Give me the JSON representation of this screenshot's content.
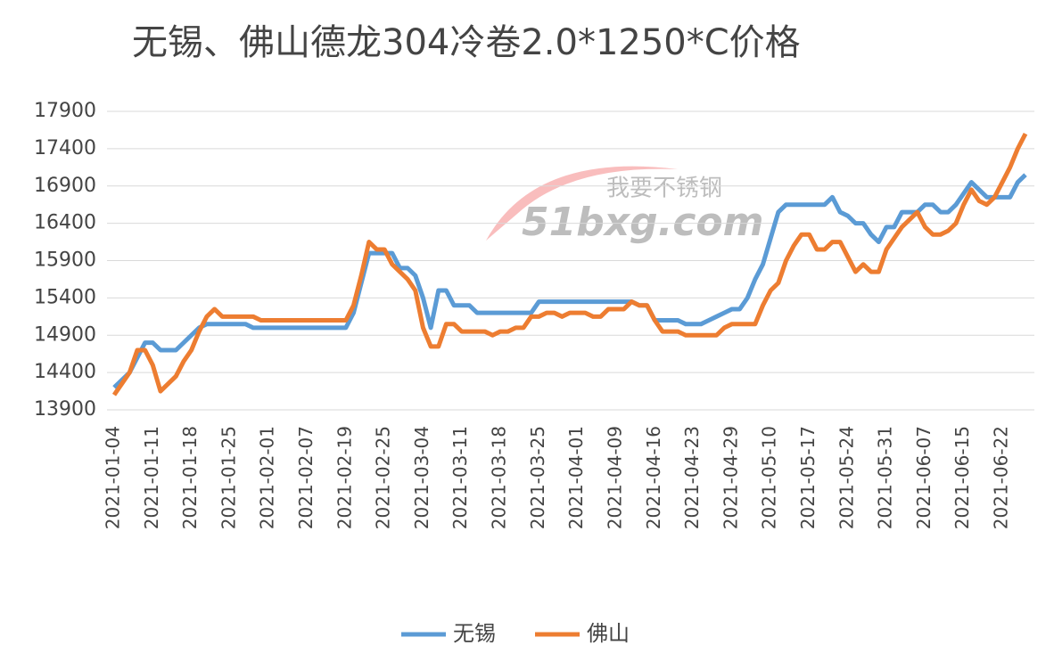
{
  "chart_data": {
    "type": "line",
    "title": "无锡、佛山德龙304冷卷2.0*1250*C价格",
    "watermark": [
      "我要不锈钢",
      "51bxg.com"
    ],
    "categories": [
      "2021-01-04",
      null,
      null,
      null,
      null,
      "2021-01-11",
      null,
      null,
      null,
      null,
      "2021-01-18",
      null,
      null,
      null,
      null,
      "2021-01-25",
      null,
      null,
      null,
      null,
      "2021-02-01",
      null,
      null,
      null,
      null,
      "2021-02-07",
      null,
      null,
      null,
      null,
      "2021-02-19",
      null,
      null,
      null,
      null,
      "2021-02-25",
      null,
      null,
      null,
      null,
      "2021-03-04",
      null,
      null,
      null,
      null,
      "2021-03-11",
      null,
      null,
      null,
      null,
      "2021-03-18",
      null,
      null,
      null,
      null,
      "2021-03-25",
      null,
      null,
      null,
      null,
      "2021-04-01",
      null,
      null,
      null,
      null,
      "2021-04-09",
      null,
      null,
      null,
      null,
      "2021-04-16",
      null,
      null,
      null,
      null,
      "2021-04-23",
      null,
      null,
      null,
      null,
      "2021-04-29",
      null,
      null,
      null,
      null,
      "2021-05-10",
      null,
      null,
      null,
      null,
      "2021-05-17",
      null,
      null,
      null,
      null,
      "2021-05-24",
      null,
      null,
      null,
      null,
      "2021-05-31",
      null,
      null,
      null,
      null,
      "2021-06-07",
      null,
      null,
      null,
      null,
      "2021-06-15",
      null,
      null,
      null,
      null,
      "2021-06-22",
      null,
      null,
      null
    ],
    "series": [
      {
        "name": "无锡",
        "color": "#5b9bd5",
        "values": [
          14200,
          14300,
          14400,
          14600,
          14800,
          14800,
          14700,
          14700,
          14700,
          14800,
          14900,
          15000,
          15050,
          15050,
          15050,
          15050,
          15050,
          15050,
          15000,
          15000,
          15000,
          15000,
          15000,
          15000,
          15000,
          15000,
          15000,
          15000,
          15000,
          15000,
          15000,
          15200,
          15600,
          16000,
          16000,
          16000,
          16000,
          15800,
          15800,
          15700,
          15400,
          15000,
          15500,
          15500,
          15300,
          15300,
          15300,
          15200,
          15200,
          15200,
          15200,
          15200,
          15200,
          15200,
          15200,
          15350,
          15350,
          15350,
          15350,
          15350,
          15350,
          15350,
          15350,
          15350,
          15350,
          15350,
          15350,
          15350,
          15300,
          15300,
          15100,
          15100,
          15100,
          15100,
          15050,
          15050,
          15050,
          15100,
          15150,
          15200,
          15250,
          15250,
          15400,
          15650,
          15850,
          16200,
          16550,
          16650,
          16650,
          16650,
          16650,
          16650,
          16650,
          16750,
          16550,
          16500,
          16400,
          16400,
          16250,
          16150,
          16350,
          16350,
          16550,
          16550,
          16550,
          16650,
          16650,
          16550,
          16550,
          16650,
          16800,
          16950,
          16850,
          16750,
          16750,
          16750,
          16750,
          16950,
          17050
        ]
      },
      {
        "name": "佛山",
        "color": "#ed7d31",
        "values": [
          14100,
          14250,
          14400,
          14700,
          14700,
          14500,
          14150,
          14250,
          14350,
          14550,
          14700,
          14950,
          15150,
          15250,
          15150,
          15150,
          15150,
          15150,
          15150,
          15100,
          15100,
          15100,
          15100,
          15100,
          15100,
          15100,
          15100,
          15100,
          15100,
          15100,
          15100,
          15300,
          15700,
          16150,
          16050,
          16050,
          15850,
          15750,
          15650,
          15500,
          15000,
          14750,
          14750,
          15050,
          15050,
          14950,
          14950,
          14950,
          14950,
          14900,
          14950,
          14950,
          15000,
          15000,
          15150,
          15150,
          15200,
          15200,
          15150,
          15200,
          15200,
          15200,
          15150,
          15150,
          15250,
          15250,
          15250,
          15350,
          15300,
          15300,
          15100,
          14950,
          14950,
          14950,
          14900,
          14900,
          14900,
          14900,
          14900,
          15000,
          15050,
          15050,
          15050,
          15050,
          15300,
          15500,
          15600,
          15900,
          16100,
          16250,
          16250,
          16050,
          16050,
          16150,
          16150,
          15950,
          15750,
          15850,
          15750,
          15750,
          16050,
          16200,
          16350,
          16450,
          16550,
          16350,
          16250,
          16250,
          16300,
          16400,
          16650,
          16850,
          16700,
          16650,
          16750,
          16950,
          17150,
          17400,
          17600
        ]
      }
    ],
    "ylim": [
      13900,
      17900
    ],
    "yticks": [
      13900,
      14400,
      14900,
      15400,
      15900,
      16400,
      16900,
      17400,
      17900
    ],
    "grid": true,
    "legend": "bottom"
  }
}
